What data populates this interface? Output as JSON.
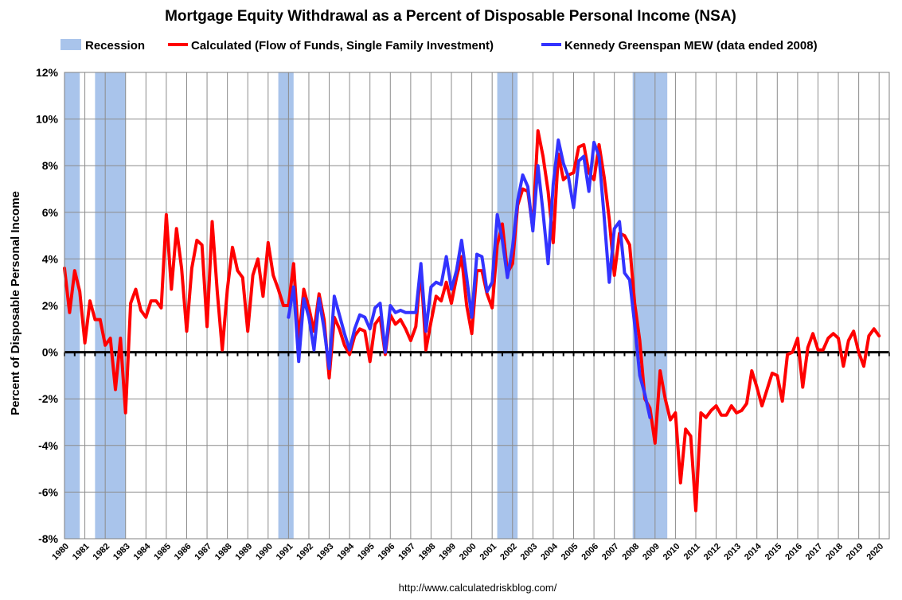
{
  "chart_data": {
    "type": "line",
    "title": "Mortgage Equity Withdrawal as a Percent of Disposable Personal Income (NSA)",
    "xlabel": "",
    "ylabel": "Percent of Disposable Personal Income",
    "source": "http://www.calculatedriskblog.com/",
    "ylim": [
      -8,
      12
    ],
    "yticks": [
      -8,
      -6,
      -4,
      -2,
      0,
      2,
      4,
      6,
      8,
      10,
      12
    ],
    "ytick_labels": [
      "-8%",
      "-6%",
      "-4%",
      "-2%",
      "0%",
      "2%",
      "4%",
      "6%",
      "8%",
      "10%",
      "12%"
    ],
    "xlim": [
      1980,
      2020.5
    ],
    "xticks": [
      "1980",
      "1981",
      "1982",
      "1983",
      "1984",
      "1985",
      "1986",
      "1987",
      "1988",
      "1989",
      "1990",
      "1991",
      "1992",
      "1993",
      "1994",
      "1995",
      "1996",
      "1997",
      "1998",
      "1999",
      "2000",
      "2001",
      "2002",
      "2003",
      "2004",
      "2005",
      "2006",
      "2007",
      "2008",
      "2009",
      "2010",
      "2011",
      "2012",
      "2013",
      "2014",
      "2015",
      "2016",
      "2017",
      "2018",
      "2019",
      "2020"
    ],
    "grid": true,
    "legend_position": "top",
    "recessions": {
      "name": "Recession",
      "color": "#A9C4EB",
      "periods": [
        [
          1980.0,
          1980.75
        ],
        [
          1981.5,
          1983.0
        ],
        [
          1990.5,
          1991.25
        ],
        [
          2001.25,
          2002.25
        ],
        [
          2007.9,
          2009.6
        ]
      ]
    },
    "series": [
      {
        "name": "Calculated (Flow of Funds, Single Family Investment)",
        "color": "#FF0000",
        "x": [
          1980.0,
          1980.25,
          1980.5,
          1980.75,
          1981.0,
          1981.25,
          1981.5,
          1981.75,
          1982.0,
          1982.25,
          1982.5,
          1982.75,
          1983.0,
          1983.25,
          1983.5,
          1983.75,
          1984.0,
          1984.25,
          1984.5,
          1984.75,
          1985.0,
          1985.25,
          1985.5,
          1985.75,
          1986.0,
          1986.25,
          1986.5,
          1986.75,
          1987.0,
          1987.25,
          1987.5,
          1987.75,
          1988.0,
          1988.25,
          1988.5,
          1988.75,
          1989.0,
          1989.25,
          1989.5,
          1989.75,
          1990.0,
          1990.25,
          1990.5,
          1990.75,
          1991.0,
          1991.25,
          1991.5,
          1991.75,
          1992.0,
          1992.25,
          1992.5,
          1992.75,
          1993.0,
          1993.25,
          1993.5,
          1993.75,
          1994.0,
          1994.25,
          1994.5,
          1994.75,
          1995.0,
          1995.25,
          1995.5,
          1995.75,
          1996.0,
          1996.25,
          1996.5,
          1996.75,
          1997.0,
          1997.25,
          1997.5,
          1997.75,
          1998.0,
          1998.25,
          1998.5,
          1998.75,
          1999.0,
          1999.25,
          1999.5,
          1999.75,
          2000.0,
          2000.25,
          2000.5,
          2000.75,
          2001.0,
          2001.25,
          2001.5,
          2001.75,
          2002.0,
          2002.25,
          2002.5,
          2002.75,
          2003.0,
          2003.25,
          2003.5,
          2003.75,
          2004.0,
          2004.25,
          2004.5,
          2004.75,
          2005.0,
          2005.25,
          2005.5,
          2005.75,
          2006.0,
          2006.25,
          2006.5,
          2006.75,
          2007.0,
          2007.25,
          2007.5,
          2007.75,
          2008.0,
          2008.25,
          2008.5,
          2008.75,
          2009.0,
          2009.25,
          2009.5,
          2009.75,
          2010.0,
          2010.25,
          2010.5,
          2010.75,
          2011.0,
          2011.25,
          2011.5,
          2011.75,
          2012.0,
          2012.25,
          2012.5,
          2012.75,
          2013.0,
          2013.25,
          2013.5,
          2013.75,
          2014.0,
          2014.25,
          2014.5,
          2014.75,
          2015.0,
          2015.25,
          2015.5,
          2015.75,
          2016.0,
          2016.25,
          2016.5,
          2016.75,
          2017.0,
          2017.25,
          2017.5,
          2017.75,
          2018.0,
          2018.25,
          2018.5,
          2018.75,
          2019.0,
          2019.25,
          2019.5,
          2019.75,
          2020.0
        ],
        "values": [
          3.6,
          1.7,
          3.5,
          2.6,
          0.4,
          2.2,
          1.4,
          1.4,
          0.3,
          0.6,
          -1.6,
          0.6,
          -2.6,
          2.1,
          2.7,
          1.8,
          1.5,
          2.2,
          2.2,
          1.9,
          5.9,
          2.7,
          5.3,
          3.6,
          0.9,
          3.6,
          4.8,
          4.6,
          1.1,
          5.6,
          2.6,
          0.1,
          2.7,
          4.5,
          3.5,
          3.2,
          0.9,
          3.3,
          4.0,
          2.4,
          4.7,
          3.3,
          2.7,
          2.0,
          2.0,
          3.8,
          0.5,
          2.7,
          1.9,
          0.9,
          2.5,
          1.4,
          -1.1,
          1.5,
          1.0,
          0.3,
          -0.1,
          0.7,
          1.0,
          0.9,
          -0.4,
          1.2,
          1.5,
          -0.1,
          1.6,
          1.2,
          1.4,
          1.0,
          0.5,
          1.1,
          3.6,
          0.1,
          1.3,
          2.4,
          2.2,
          3.0,
          2.1,
          3.2,
          4.1,
          2.0,
          0.8,
          3.5,
          3.5,
          2.5,
          1.9,
          4.6,
          5.5,
          3.4,
          3.8,
          6.3,
          7.0,
          6.9,
          5.3,
          9.5,
          8.4,
          6.9,
          4.7,
          8.5,
          7.4,
          7.6,
          7.7,
          8.8,
          8.9,
          7.7,
          7.4,
          8.9,
          7.5,
          5.7,
          3.3,
          5.1,
          5.0,
          4.6,
          2.1,
          0.5,
          -2.0,
          -2.4,
          -3.9,
          -0.8,
          -2.0,
          -2.9,
          -2.6,
          -5.6,
          -3.3,
          -3.6,
          -6.8,
          -2.6,
          -2.8,
          -2.5,
          -2.3,
          -2.7,
          -2.7,
          -2.3,
          -2.6,
          -2.5,
          -2.2,
          -0.8,
          -1.5,
          -2.3,
          -1.6,
          -0.9,
          -1.0,
          -2.1,
          -0.1,
          0.0,
          0.6,
          -1.5,
          0.2,
          0.8,
          0.1,
          0.1,
          0.6,
          0.8,
          0.6,
          -0.6,
          0.5,
          0.9,
          0.0,
          -0.6,
          0.7,
          1.0,
          0.7
        ]
      },
      {
        "name": "Kennedy Greenspan MEW (data ended 2008)",
        "color": "#3333FF",
        "x": [
          1991.0,
          1991.25,
          1991.5,
          1991.75,
          1992.0,
          1992.25,
          1992.5,
          1992.75,
          1993.0,
          1993.25,
          1993.5,
          1993.75,
          1994.0,
          1994.25,
          1994.5,
          1994.75,
          1995.0,
          1995.25,
          1995.5,
          1995.75,
          1996.0,
          1996.25,
          1996.5,
          1996.75,
          1997.0,
          1997.25,
          1997.5,
          1997.75,
          1998.0,
          1998.25,
          1998.5,
          1998.75,
          1999.0,
          1999.25,
          1999.5,
          1999.75,
          2000.0,
          2000.25,
          2000.5,
          2000.75,
          2001.0,
          2001.25,
          2001.5,
          2001.75,
          2002.0,
          2002.25,
          2002.5,
          2002.75,
          2003.0,
          2003.25,
          2003.5,
          2003.75,
          2004.0,
          2004.25,
          2004.5,
          2004.75,
          2005.0,
          2005.25,
          2005.5,
          2005.75,
          2006.0,
          2006.25,
          2006.5,
          2006.75,
          2007.0,
          2007.25,
          2007.5,
          2007.75,
          2008.0,
          2008.25,
          2008.5,
          2008.75
        ],
        "values": [
          1.5,
          2.8,
          -0.4,
          2.3,
          1.5,
          0.1,
          2.3,
          1.0,
          -0.7,
          2.4,
          1.6,
          0.8,
          0.1,
          1.0,
          1.6,
          1.5,
          1.0,
          1.9,
          2.1,
          0.0,
          2.0,
          1.7,
          1.8,
          1.7,
          1.7,
          1.7,
          3.8,
          0.9,
          2.8,
          3.0,
          2.9,
          4.1,
          2.7,
          3.5,
          4.8,
          3.2,
          1.5,
          4.2,
          4.1,
          2.6,
          3.0,
          5.9,
          4.8,
          3.2,
          4.5,
          6.5,
          7.6,
          7.1,
          5.2,
          8.0,
          6.0,
          3.8,
          7.2,
          9.1,
          8.1,
          7.5,
          6.2,
          8.2,
          8.4,
          6.9,
          9.0,
          8.4,
          5.8,
          3.0,
          5.3,
          5.6,
          3.4,
          3.1,
          1.2,
          -1.0,
          -1.8,
          -2.8
        ]
      }
    ]
  }
}
